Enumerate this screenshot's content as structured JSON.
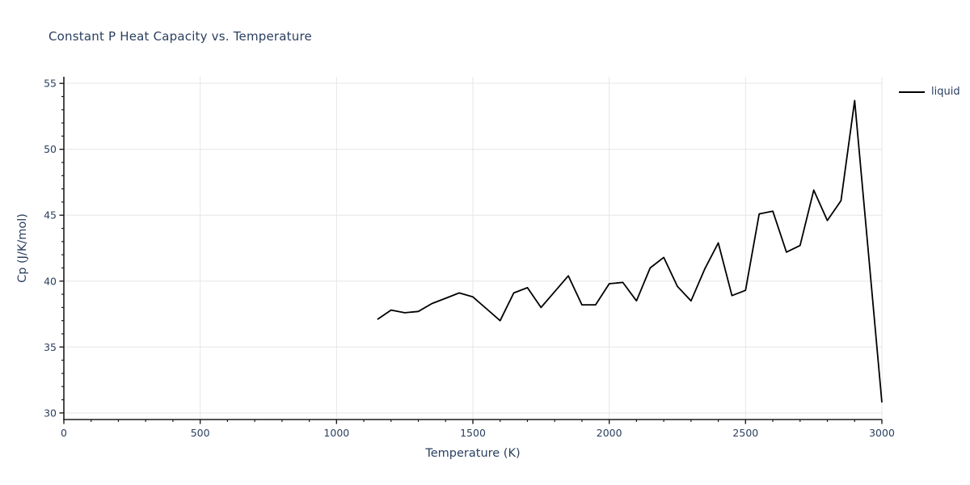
{
  "chart_data": {
    "type": "line",
    "title": "Constant P Heat Capacity vs. Temperature",
    "xlabel": "Temperature (K)",
    "ylabel": "Cp (J/K/mol)",
    "legend": {
      "position": "outside-top-right",
      "entries": [
        {
          "label": "liquid",
          "color": "#000000"
        }
      ]
    },
    "x_axis": {
      "min": 0,
      "max": 3000,
      "major_ticks": [
        0,
        500,
        1000,
        1500,
        2000,
        2500,
        3000
      ],
      "minor_tick_step": 100,
      "grid": true
    },
    "y_axis": {
      "min": 29.5,
      "max": 55.5,
      "major_ticks": [
        30,
        35,
        40,
        45,
        50,
        55
      ],
      "minor_tick_step": 1,
      "grid": true
    },
    "series": [
      {
        "name": "liquid",
        "color": "#000000",
        "x": [
          1150,
          1200,
          1250,
          1300,
          1350,
          1400,
          1450,
          1500,
          1550,
          1600,
          1650,
          1700,
          1750,
          1800,
          1850,
          1900,
          1950,
          2000,
          2050,
          2100,
          2150,
          2200,
          2250,
          2300,
          2350,
          2400,
          2450,
          2500,
          2550,
          2600,
          2650,
          2700,
          2750,
          2800,
          2850,
          2900,
          2950,
          3000
        ],
        "y": [
          37.1,
          37.8,
          37.6,
          37.7,
          38.3,
          38.7,
          39.1,
          38.8,
          37.9,
          37.0,
          39.1,
          39.5,
          38.0,
          39.2,
          40.4,
          38.2,
          38.2,
          39.8,
          39.9,
          38.5,
          41.0,
          41.8,
          39.6,
          38.5,
          40.9,
          42.9,
          38.9,
          39.3,
          45.1,
          45.3,
          42.2,
          42.7,
          46.9,
          44.6,
          46.1,
          53.7,
          42.3,
          30.8
        ]
      }
    ],
    "colors": {
      "text": "#2a3f5f",
      "grid": "#e6e6e6",
      "axis": "#1c1c1c",
      "background": "#ffffff"
    }
  }
}
